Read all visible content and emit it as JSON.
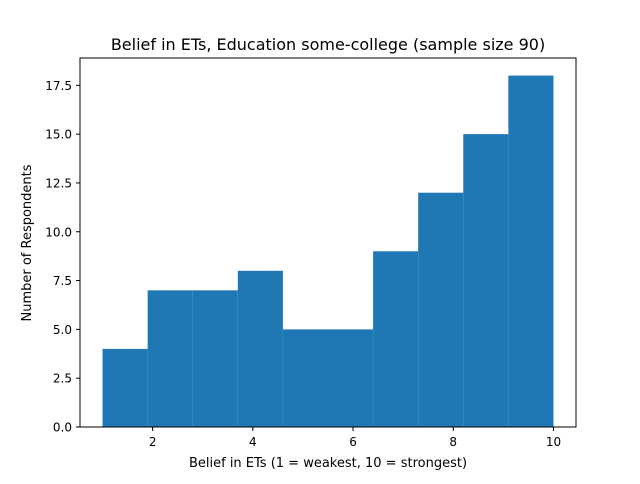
{
  "chart_data": {
    "type": "histogram",
    "title": "Belief in ETs, Education some-college (sample size 90)",
    "xlabel": "Belief in ETs (1 = weakest, 10 = strongest)",
    "ylabel": "Number of Respondents",
    "xlim": [
      0.55,
      10.45
    ],
    "ylim": [
      0,
      18.9
    ],
    "xticks": [
      2,
      4,
      6,
      8,
      10
    ],
    "xtick_labels": [
      "2",
      "4",
      "6",
      "8",
      "10"
    ],
    "yticks": [
      0,
      2.5,
      5,
      7.5,
      10,
      12.5,
      15,
      17.5
    ],
    "ytick_labels": [
      "0.0",
      "2.5",
      "5.0",
      "7.5",
      "10.0",
      "12.5",
      "15.0",
      "17.5"
    ],
    "bin_edges": [
      1.0,
      1.9,
      2.8,
      3.7,
      4.6,
      5.5,
      6.4,
      7.3,
      8.2,
      9.1,
      10.0
    ],
    "values": [
      4,
      7,
      7,
      8,
      5,
      5,
      9,
      12,
      15,
      18
    ],
    "bar_color": "#1f77b4",
    "grid": false,
    "legend": "none"
  }
}
